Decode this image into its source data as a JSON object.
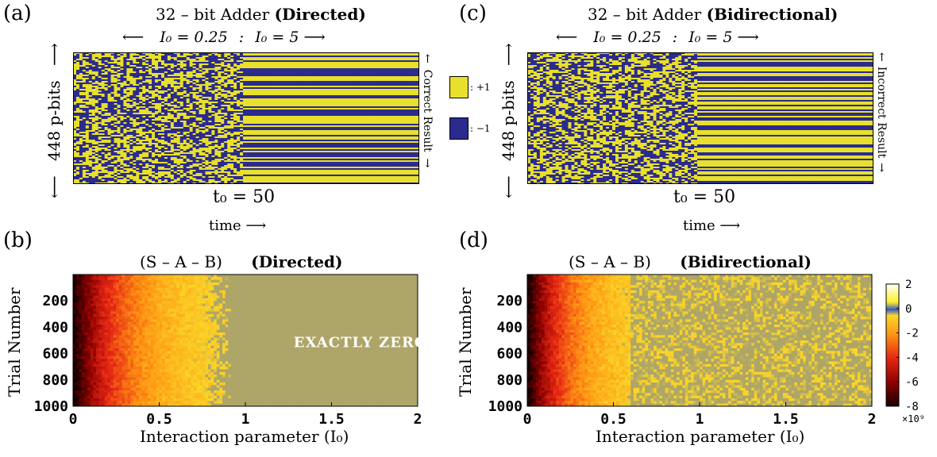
{
  "panels": {
    "a": {
      "letter": "(a)",
      "title_prefix": "32 – bit Adder",
      "title_bold": "(Directed)",
      "arrow_left": "⟵",
      "i0_left": "I₀ = 0.25",
      "sep": ":",
      "i0_right": "I₀ = 5",
      "arrow_right": "⟶",
      "ylabel": "448 p-bits",
      "side_label": "Correct Result",
      "t0": "t₀ = 50",
      "xlabel": "time ⟶"
    },
    "c": {
      "letter": "(c)",
      "title_prefix": "32 – bit Adder",
      "title_bold": "(Bidirectional)",
      "arrow_left": "⟵",
      "i0_left": "I₀ = 0.25",
      "sep": ":",
      "i0_right": "I₀ = 5",
      "arrow_right": "⟶",
      "ylabel": "448 p-bits",
      "side_label": "Incorrect Result",
      "t0": "t₀ = 50",
      "xlabel": "time ⟶"
    },
    "b": {
      "letter": "(b)",
      "title_prefix": "(S – A – B)",
      "title_bold": "(Directed)",
      "ylabel": "Trial Number",
      "xlabel": "Interaction parameter (I₀)",
      "annotation": "EXACTLY ZERO"
    },
    "d": {
      "letter": "(d)",
      "title_prefix": "(S – A – B)",
      "title_bold": "(Bidirectional)",
      "ylabel": "Trial Number",
      "xlabel": "Interaction parameter (I₀)"
    }
  },
  "legend": {
    "plus": ": +1",
    "minus": ": −1",
    "plus_color": "#e8e02a",
    "minus_color": "#2b2b8f"
  },
  "colorbar": {
    "ticks": [
      "2",
      "0",
      "-2",
      "-4",
      "-6",
      "-8"
    ],
    "scale": "×10⁹"
  },
  "chart_data": [
    {
      "type": "heatmap",
      "panel": "a",
      "title": "32 – bit Adder (Directed)",
      "xlabel": "time",
      "ylabel": "448 p-bits",
      "rows": 448,
      "t0": 50,
      "values": [
        -1,
        1
      ],
      "note": "random before t0 (I0 = 0.25), frozen to correct result after (I0 = 5)"
    },
    {
      "type": "heatmap",
      "panel": "c",
      "title": "32 – bit Adder (Bidirectional)",
      "xlabel": "time",
      "ylabel": "448 p-bits",
      "rows": 448,
      "t0": 50,
      "values": [
        -1,
        1
      ],
      "note": "random before t0 (I0 = 0.25), frozen to incorrect result after (I0 = 5)"
    },
    {
      "type": "heatmap",
      "panel": "b",
      "title": "(S – A – B) (Directed)",
      "xlabel": "Interaction parameter (I0)",
      "ylabel": "Trial Number",
      "xlim": [
        0,
        2
      ],
      "xticks": [
        "0",
        "0.5",
        "1",
        "1.5",
        "2"
      ],
      "yticks": [
        "200",
        "400",
        "600",
        "800",
        "1000"
      ],
      "ylim": [
        1,
        1000
      ],
      "color_scale": [
        -8,
        2
      ],
      "color_scale_unit": "×10^9",
      "zero_from_I0": 1.0,
      "annotation": "EXACTLY ZERO"
    },
    {
      "type": "heatmap",
      "panel": "d",
      "title": "(S – A – B) (Bidirectional)",
      "xlabel": "Interaction parameter (I0)",
      "ylabel": "Trial Number",
      "xlim": [
        0,
        2
      ],
      "xticks": [
        "0",
        "0.5",
        "1",
        "1.5",
        "2"
      ],
      "yticks": [
        "200",
        "400",
        "600",
        "800",
        "1000"
      ],
      "ylim": [
        1,
        1000
      ],
      "color_scale": [
        -8,
        2
      ],
      "color_scale_unit": "×10^9"
    }
  ]
}
